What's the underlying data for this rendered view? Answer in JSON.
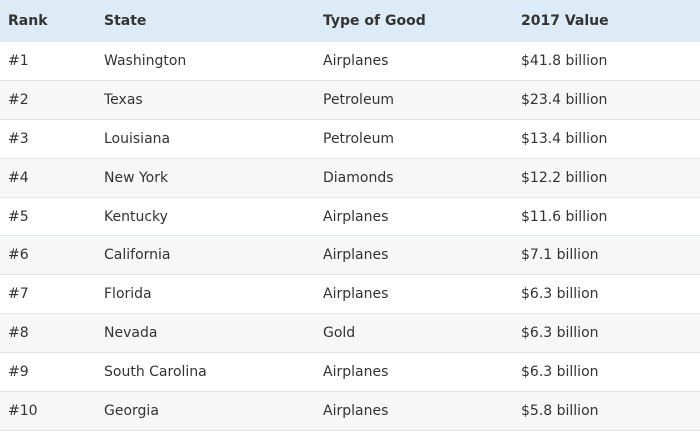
{
  "table": {
    "header": [
      "Rank",
      "State",
      "Type of Good",
      "2017 Value"
    ],
    "rows": [
      [
        "#1",
        "Washington",
        "Airplanes",
        "$41.8 billion"
      ],
      [
        "#2",
        "Texas",
        "Petroleum",
        "$23.4 billion"
      ],
      [
        "#3",
        "Louisiana",
        "Petroleum",
        "$13.4 billion"
      ],
      [
        "#4",
        "New York",
        "Diamonds",
        "$12.2 billion"
      ],
      [
        "#5",
        "Kentucky",
        "Airplanes",
        "$11.6 billion"
      ],
      [
        "#6",
        "California",
        "Airplanes",
        "$7.1 billion"
      ],
      [
        "#7",
        "Florida",
        "Airplanes",
        "$6.3 billion"
      ],
      [
        "#8",
        "Nevada",
        "Gold",
        "$6.3 billion"
      ],
      [
        "#9",
        "South Carolina",
        "Airplanes",
        "$6.3 billion"
      ],
      [
        "#10",
        "Georgia",
        "Airplanes",
        "$5.8 billion"
      ]
    ]
  }
}
